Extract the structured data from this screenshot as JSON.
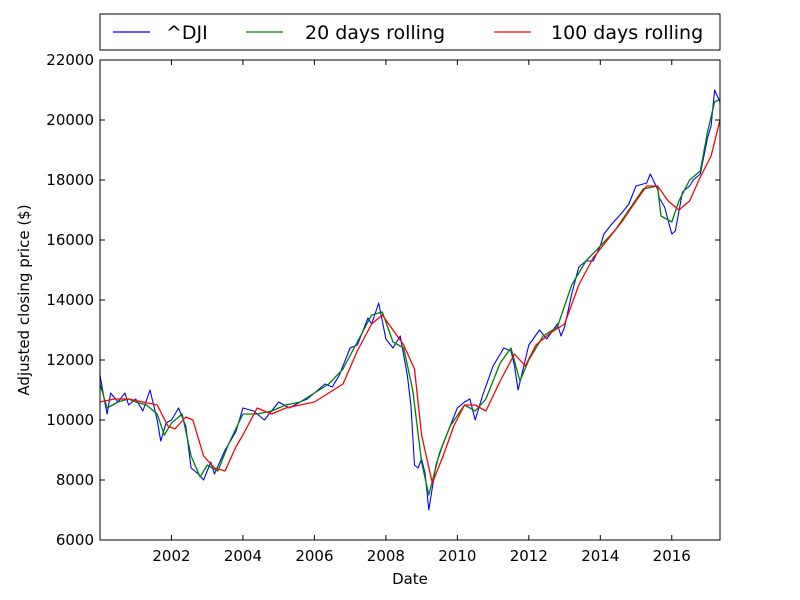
{
  "chart_data": {
    "type": "line",
    "xlabel": "Date",
    "ylabel": "Adjusted closing price ($)",
    "xlim": [
      2000.0,
      2017.35
    ],
    "ylim": [
      6000,
      22000
    ],
    "x_ticks": [
      2002,
      2004,
      2006,
      2008,
      2010,
      2012,
      2014,
      2016
    ],
    "y_ticks": [
      6000,
      8000,
      10000,
      12000,
      14000,
      16000,
      18000,
      20000,
      22000
    ],
    "grid": false,
    "legend_position": "top",
    "colors": {
      "dji": "#0000ff",
      "roll20": "#008000",
      "roll100": "#ff0000"
    },
    "series": [
      {
        "name": "^DJI",
        "x": [
          2000.0,
          2000.1,
          2000.2,
          2000.3,
          2000.5,
          2000.7,
          2000.8,
          2001.0,
          2001.2,
          2001.4,
          2001.6,
          2001.7,
          2001.85,
          2002.0,
          2002.2,
          2002.4,
          2002.55,
          2002.75,
          2002.9,
          2003.1,
          2003.2,
          2003.5,
          2003.8,
          2004.0,
          2004.3,
          2004.6,
          2004.8,
          2005.0,
          2005.3,
          2005.6,
          2005.8,
          2006.0,
          2006.3,
          2006.5,
          2006.7,
          2007.0,
          2007.2,
          2007.5,
          2007.6,
          2007.8,
          2008.0,
          2008.2,
          2008.4,
          2008.6,
          2008.7,
          2008.8,
          2008.9,
          2009.0,
          2009.1,
          2009.2,
          2009.4,
          2009.6,
          2009.8,
          2010.0,
          2010.2,
          2010.35,
          2010.5,
          2010.7,
          2011.0,
          2011.3,
          2011.5,
          2011.6,
          2011.7,
          2011.8,
          2012.0,
          2012.3,
          2012.5,
          2012.8,
          2012.9,
          2013.0,
          2013.2,
          2013.4,
          2013.6,
          2013.8,
          2014.0,
          2014.1,
          2014.3,
          2014.6,
          2014.8,
          2014.9,
          2015.0,
          2015.3,
          2015.4,
          2015.6,
          2015.65,
          2015.8,
          2016.0,
          2016.1,
          2016.3,
          2016.5,
          2016.6,
          2016.8,
          2016.85,
          2017.0,
          2017.1,
          2017.2,
          2017.35
        ],
        "y": [
          11500,
          10800,
          10200,
          10900,
          10600,
          10900,
          10500,
          10700,
          10300,
          11000,
          10000,
          9300,
          9900,
          10000,
          10400,
          9800,
          8400,
          8200,
          8000,
          8600,
          8200,
          9000,
          9600,
          10400,
          10300,
          10000,
          10300,
          10600,
          10400,
          10600,
          10700,
          10900,
          11200,
          11100,
          11500,
          12400,
          12500,
          13400,
          13200,
          13900,
          12700,
          12400,
          12800,
          11500,
          10500,
          8500,
          8400,
          8700,
          8200,
          7000,
          8500,
          9200,
          9800,
          10400,
          10600,
          10700,
          10000,
          10800,
          11800,
          12400,
          12300,
          11800,
          11000,
          11500,
          12500,
          13000,
          12700,
          13200,
          12800,
          13100,
          14200,
          15100,
          15300,
          15300,
          15800,
          16200,
          16500,
          16900,
          17200,
          17500,
          17800,
          17900,
          18200,
          17700,
          17400,
          17100,
          16200,
          16300,
          17600,
          17800,
          18000,
          18200,
          18500,
          19400,
          19800,
          21000,
          20600
        ]
      },
      {
        "name": "20 days rolling",
        "x": [
          2000.0,
          2000.2,
          2000.5,
          2000.8,
          2001.0,
          2001.3,
          2001.6,
          2001.8,
          2002.0,
          2002.3,
          2002.55,
          2002.8,
          2003.0,
          2003.3,
          2003.6,
          2004.0,
          2004.4,
          2004.8,
          2005.2,
          2005.6,
          2006.0,
          2006.4,
          2006.8,
          2007.2,
          2007.6,
          2007.9,
          2008.2,
          2008.5,
          2008.75,
          2009.0,
          2009.2,
          2009.5,
          2009.8,
          2010.2,
          2010.5,
          2010.8,
          2011.2,
          2011.5,
          2011.75,
          2012.0,
          2012.4,
          2012.8,
          2013.2,
          2013.6,
          2014.0,
          2014.4,
          2014.8,
          2015.2,
          2015.6,
          2015.7,
          2016.0,
          2016.2,
          2016.5,
          2016.8,
          2017.0,
          2017.2,
          2017.35
        ],
        "y": [
          11200,
          10400,
          10600,
          10700,
          10600,
          10500,
          10200,
          9500,
          9900,
          10200,
          8800,
          8100,
          8500,
          8300,
          9200,
          10200,
          10200,
          10300,
          10500,
          10600,
          10900,
          11200,
          11700,
          12600,
          13500,
          13600,
          12600,
          12400,
          11000,
          8600,
          7500,
          8900,
          9800,
          10500,
          10300,
          10700,
          11900,
          12400,
          11300,
          12000,
          12800,
          13100,
          14500,
          15300,
          15800,
          16300,
          17000,
          17700,
          17800,
          16800,
          16600,
          17300,
          18000,
          18300,
          19600,
          20600,
          20700
        ]
      },
      {
        "name": "100 days rolling",
        "x": [
          2000.0,
          2000.4,
          2000.8,
          2001.2,
          2001.6,
          2001.9,
          2002.1,
          2002.4,
          2002.6,
          2002.9,
          2003.2,
          2003.5,
          2003.8,
          2004.0,
          2004.4,
          2004.8,
          2005.2,
          2005.6,
          2006.0,
          2006.4,
          2006.8,
          2007.2,
          2007.6,
          2007.9,
          2008.2,
          2008.5,
          2008.8,
          2009.0,
          2009.3,
          2009.6,
          2009.9,
          2010.2,
          2010.5,
          2010.8,
          2011.2,
          2011.6,
          2011.9,
          2012.2,
          2012.6,
          2013.0,
          2013.4,
          2013.8,
          2014.2,
          2014.6,
          2015.0,
          2015.3,
          2015.6,
          2015.9,
          2016.2,
          2016.5,
          2016.8,
          2017.1,
          2017.35
        ],
        "y": [
          10600,
          10700,
          10700,
          10600,
          10500,
          9800,
          9700,
          10100,
          10000,
          8800,
          8400,
          8300,
          9100,
          9500,
          10400,
          10200,
          10400,
          10500,
          10600,
          10900,
          11200,
          12300,
          13200,
          13500,
          13000,
          12500,
          11700,
          9500,
          7900,
          8800,
          9800,
          10500,
          10500,
          10300,
          11300,
          12200,
          11800,
          12500,
          12900,
          13200,
          14500,
          15400,
          16000,
          16600,
          17300,
          17800,
          17800,
          17300,
          17000,
          17300,
          18100,
          18800,
          20000
        ]
      }
    ]
  }
}
